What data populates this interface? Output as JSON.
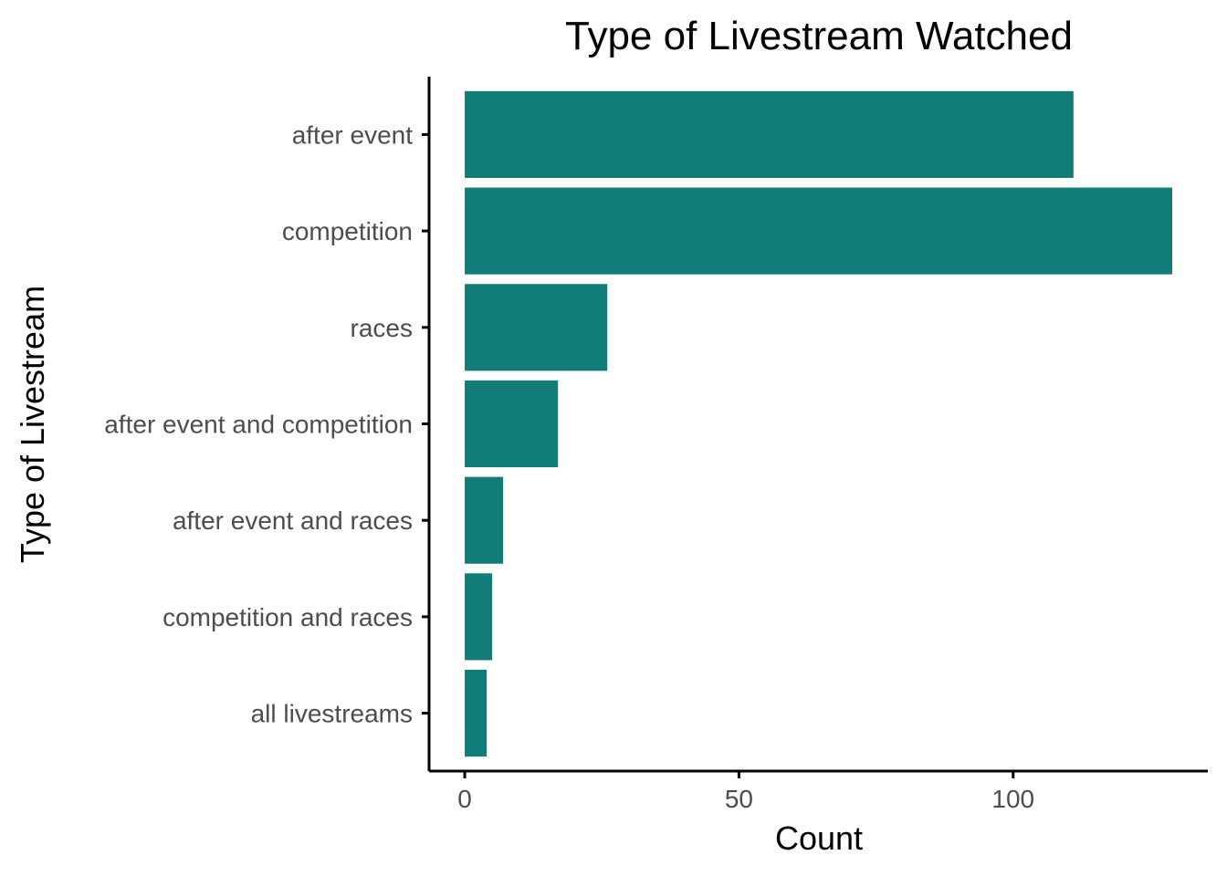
{
  "colors": {
    "bar": "#127C79",
    "axis": "#000000",
    "tick_text": "#4d4d4d",
    "background": "#ffffff"
  },
  "chart_data": {
    "type": "bar",
    "orientation": "horizontal",
    "title": "Type of Livestream Watched",
    "xlabel": "Count",
    "ylabel": "Type of Livestream",
    "categories": [
      "after event",
      "competition",
      "races",
      "after event and competition",
      "after event and races",
      "competition and races",
      "all livestreams"
    ],
    "values": [
      111,
      129,
      26,
      17,
      7,
      5,
      4
    ],
    "xlim": [
      -6.5,
      135.5
    ],
    "x_ticks": [
      0,
      50,
      100
    ],
    "x_tick_labels": [
      "0",
      "50",
      "100"
    ],
    "grid": false,
    "legend": "none"
  }
}
